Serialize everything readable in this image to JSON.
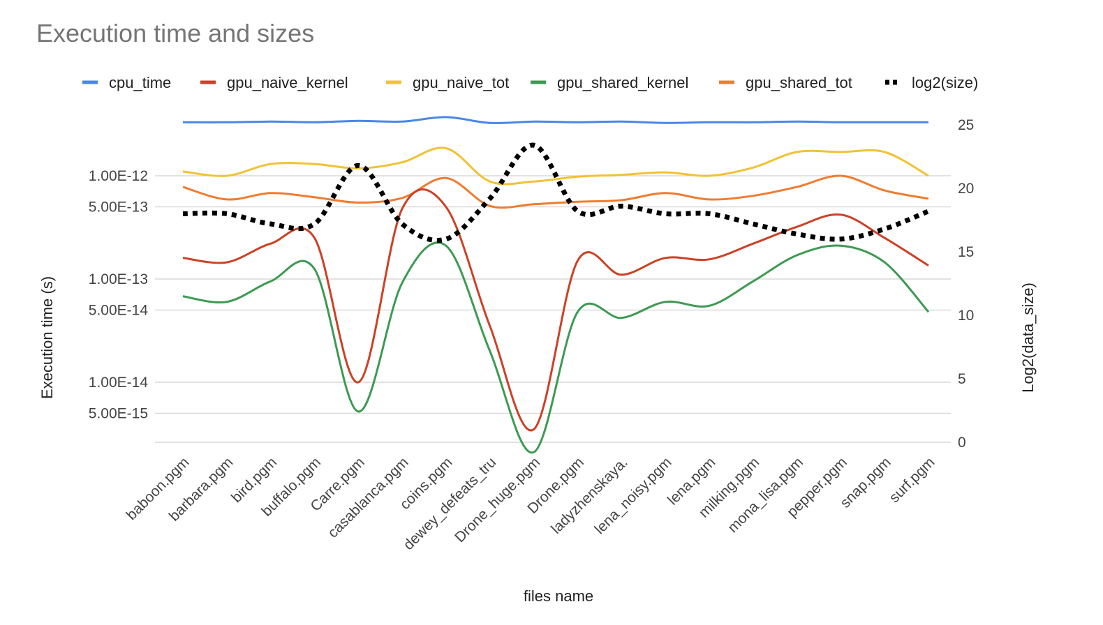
{
  "chart_data": {
    "type": "line",
    "title": "Execution time and sizes",
    "xlabel": "files name",
    "ylabel": "Execution time (s)",
    "y2label": "Log2(data_size)",
    "y_scale": "log",
    "y_ticks": [
      "5.00E-15",
      "1.00E-14",
      "5.00E-14",
      "1.00E-13",
      "5.00E-13",
      "1.00E-12"
    ],
    "y2_ticks": [
      "0",
      "5",
      "10",
      "15",
      "20",
      "25"
    ],
    "y2lim": [
      0,
      25
    ],
    "legend_position": "top",
    "grid": true,
    "categories": [
      "baboon.pgm",
      "barbara.pgm",
      "bird.pgm",
      "buffalo.pgm",
      "Carre.pgm",
      "casablanca.pgm",
      "coins.pgm",
      "dewey_defeats_tru",
      "Drone_huge.pgm",
      "Drone.pgm",
      "ladyzhenskaya.",
      "lena_noisy.pgm",
      "lena.pgm",
      "milking.pgm",
      "mona_lisa.pgm",
      "pepper.pgm",
      "snap.pgm",
      "surf.pgm"
    ],
    "series": [
      {
        "name": "cpu_time",
        "color": "#4a86e8",
        "axis": "left",
        "dash": false,
        "values": [
          3.3e-12,
          3.3e-12,
          3.35e-12,
          3.3e-12,
          3.4e-12,
          3.35e-12,
          3.7e-12,
          3.25e-12,
          3.35e-12,
          3.3e-12,
          3.35e-12,
          3.25e-12,
          3.3e-12,
          3.3e-12,
          3.35e-12,
          3.3e-12,
          3.3e-12,
          3.3e-12
        ]
      },
      {
        "name": "gpu_naive_kernel",
        "color": "#cc4125",
        "axis": "left",
        "dash": false,
        "values": [
          1.6e-13,
          1.45e-13,
          2.2e-13,
          2.5e-13,
          1e-14,
          4.8e-13,
          5e-13,
          3.5e-14,
          3.5e-15,
          1.5e-13,
          1.1e-13,
          1.6e-13,
          1.55e-13,
          2.2e-13,
          3.2e-13,
          4.2e-13,
          2.5e-13,
          1.35e-13
        ]
      },
      {
        "name": "gpu_naive_tot",
        "color": "#f1c232",
        "axis": "left",
        "dash": false,
        "values": [
          1.1e-12,
          1e-12,
          1.3e-12,
          1.3e-12,
          1.18e-12,
          1.35e-12,
          1.85e-12,
          8.8e-13,
          8.8e-13,
          9.8e-13,
          1.02e-12,
          1.08e-12,
          1e-12,
          1.2e-12,
          1.7e-12,
          1.7e-12,
          1.7e-12,
          1e-12
        ]
      },
      {
        "name": "gpu_shared_kernel",
        "color": "#3d9a52",
        "axis": "left",
        "dash": false,
        "values": [
          6.8e-14,
          6e-14,
          9.5e-14,
          1.25e-13,
          5.2e-15,
          9.2e-14,
          2.1e-13,
          2e-14,
          2.1e-15,
          4.8e-14,
          4.2e-14,
          6e-14,
          5.5e-14,
          9.5e-14,
          1.7e-13,
          2.1e-13,
          1.45e-13,
          4.8e-14
        ]
      },
      {
        "name": "gpu_shared_tot",
        "color": "#f07c2f",
        "axis": "left",
        "dash": false,
        "values": [
          7.8e-13,
          5.9e-13,
          6.8e-13,
          6.2e-13,
          5.5e-13,
          6.1e-13,
          9.5e-13,
          5.1e-13,
          5.3e-13,
          5.6e-13,
          5.8e-13,
          6.8e-13,
          5.9e-13,
          6.4e-13,
          7.8e-13,
          1e-12,
          7.2e-13,
          6e-13
        ]
      },
      {
        "name": "log2(size)",
        "color": "#000000",
        "axis": "right",
        "dash": true,
        "values": [
          18,
          18,
          17.2,
          17.2,
          21.8,
          17.2,
          16,
          19.2,
          23.4,
          18.2,
          18.6,
          18,
          18,
          17.2,
          16.4,
          16,
          16.8,
          18.2
        ]
      }
    ]
  }
}
